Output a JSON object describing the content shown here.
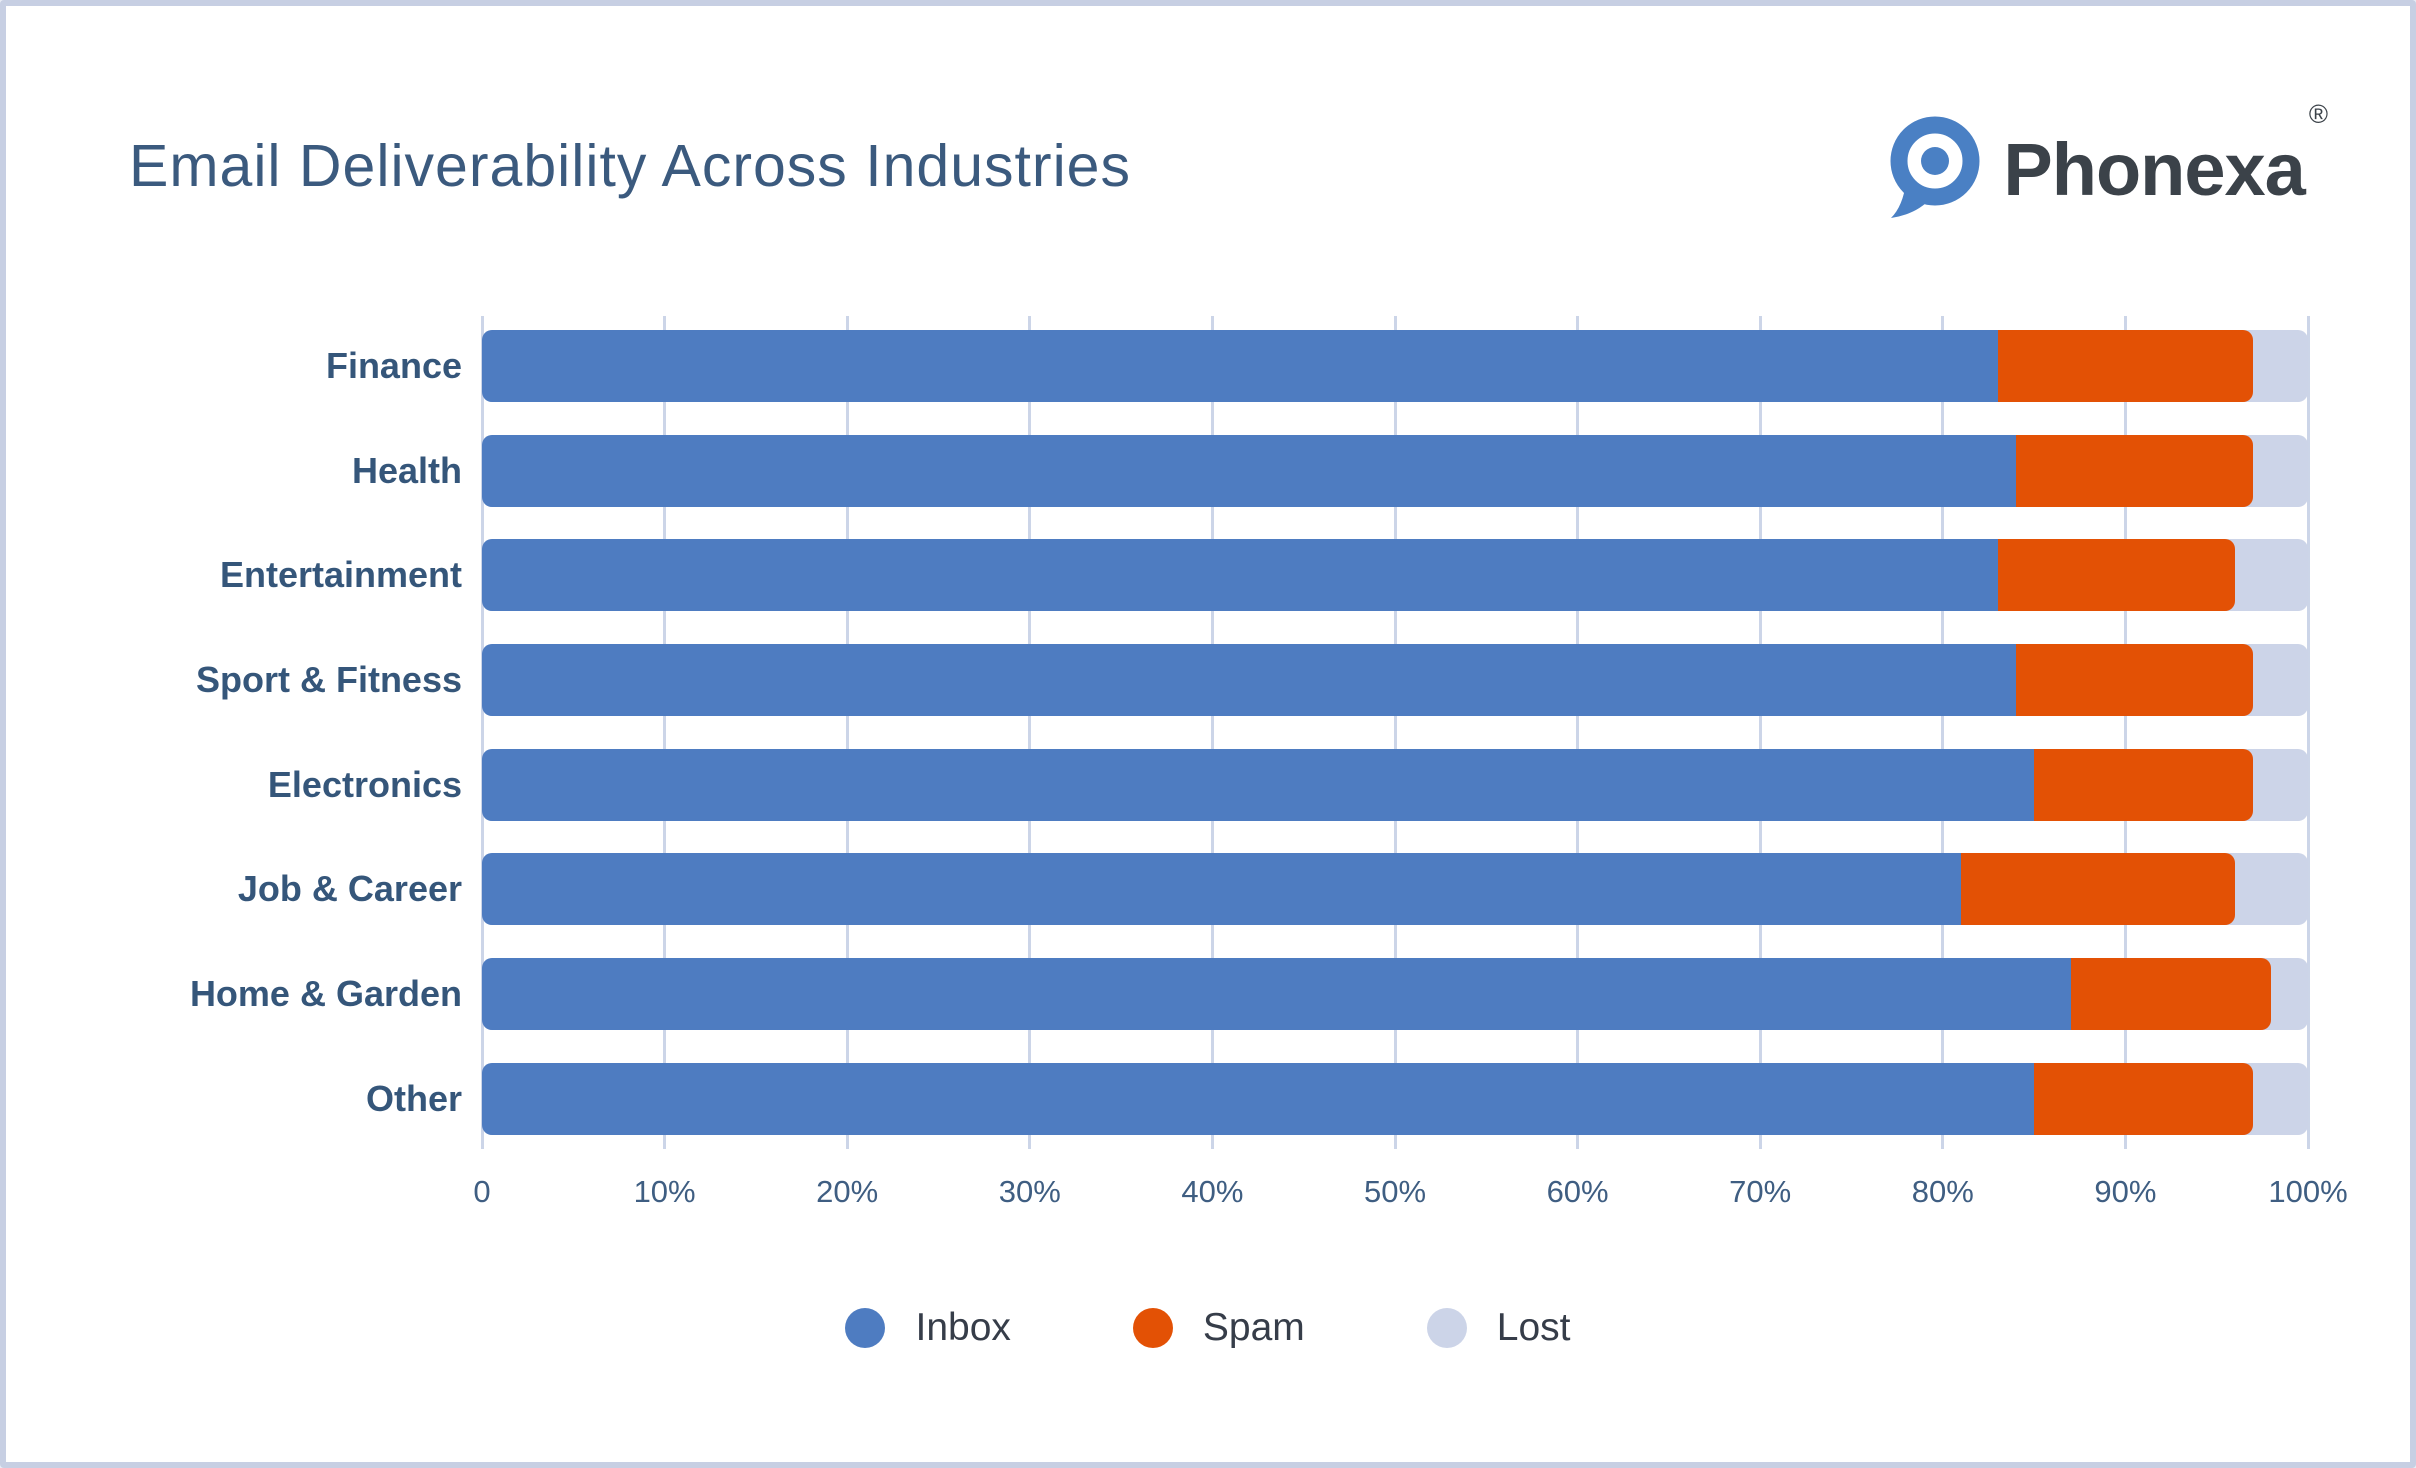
{
  "card": {
    "background": "#ffffff",
    "border_color": "#c7cfe3"
  },
  "header": {
    "title": "Email Deliverability Across Industries",
    "title_color": "#3b5a7e",
    "logo": {
      "brand": "Phonexa",
      "registered_mark": "®",
      "icon_name": "phonexa-bubble-pin-icon",
      "icon_color": "#4a80c4",
      "text_color": "#3b4249"
    }
  },
  "chart_data": {
    "type": "bar",
    "orientation": "horizontal",
    "stacked": true,
    "title": "Email Deliverability Across Industries",
    "categories": [
      "Finance",
      "Health",
      "Entertainment",
      "Sport & Fitness",
      "Electronics",
      "Job & Career",
      "Home & Garden",
      "Other"
    ],
    "series": [
      {
        "name": "Inbox",
        "color": "#4e7cc1",
        "values": [
          83,
          84,
          83,
          84,
          85,
          81,
          87,
          85
        ]
      },
      {
        "name": "Spam",
        "color": "#e35105",
        "values": [
          14,
          13,
          13,
          13,
          12,
          15,
          11,
          12
        ]
      },
      {
        "name": "Lost",
        "color": "#ccd4e8",
        "values": [
          3,
          3,
          4,
          3,
          3,
          4,
          2,
          3
        ]
      }
    ],
    "x_axis": {
      "min": 0,
      "max": 100,
      "unit": "%",
      "ticks": [
        "0",
        "10%",
        "20%",
        "30%",
        "40%",
        "50%",
        "60%",
        "70%",
        "80%",
        "90%",
        "100%"
      ],
      "grid": true,
      "gridline_color": "#ccd5e8"
    },
    "legend": {
      "position": "bottom",
      "items": [
        "Inbox",
        "Spam",
        "Lost"
      ]
    }
  }
}
